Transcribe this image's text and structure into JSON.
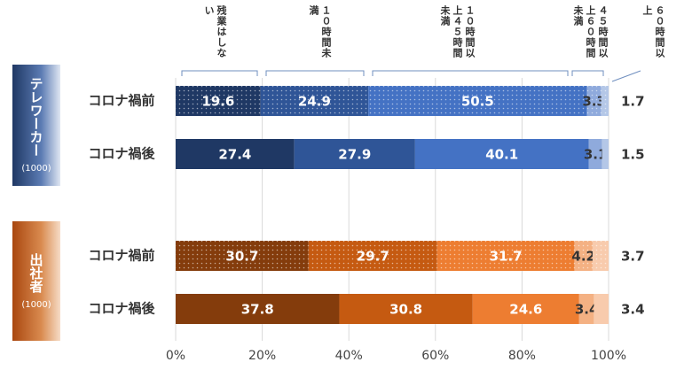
{
  "chart_data": {
    "type": "stacked-bar",
    "series": [
      {
        "name": "残業はしない"
      },
      {
        "name": "１０時間未満"
      },
      {
        "name": "１０時間以上４５時間未満"
      },
      {
        "name": "４５時間以上６０時間未満"
      },
      {
        "name": "６０時間以上"
      }
    ],
    "groups": [
      {
        "name": "テレワーカー",
        "n": "(1000)",
        "colors": [
          "#1f3864",
          "#2f5597",
          "#4472c4",
          "#8faadc",
          "#b4c7e7"
        ],
        "rows": [
          {
            "category": "コロナ禍前",
            "dotted": true,
            "values": [
              19.6,
              24.9,
              50.5,
              3.3,
              1.7
            ]
          },
          {
            "category": "コロナ禍後",
            "dotted": false,
            "values": [
              27.4,
              27.9,
              40.1,
              3.1,
              1.5
            ]
          }
        ]
      },
      {
        "name": "出社者",
        "n": "(1000)",
        "colors": [
          "#843c0c",
          "#c55a11",
          "#ed7d31",
          "#f4b183",
          "#f8cbad"
        ],
        "rows": [
          {
            "category": "コロナ禍前",
            "dotted": true,
            "values": [
              30.7,
              29.7,
              31.7,
              4.2,
              3.7
            ]
          },
          {
            "category": "コロナ禍後",
            "dotted": false,
            "values": [
              37.8,
              30.8,
              24.6,
              3.4,
              3.4
            ]
          }
        ]
      }
    ],
    "xlim": [
      0,
      100
    ],
    "xticks": [
      {
        "value": 0,
        "label": "0%"
      },
      {
        "value": 20,
        "label": "20%"
      },
      {
        "value": 40,
        "label": "40%"
      },
      {
        "value": 60,
        "label": "60%"
      },
      {
        "value": 80,
        "label": "80%"
      },
      {
        "value": 100,
        "label": "100%"
      }
    ],
    "grid": true
  }
}
